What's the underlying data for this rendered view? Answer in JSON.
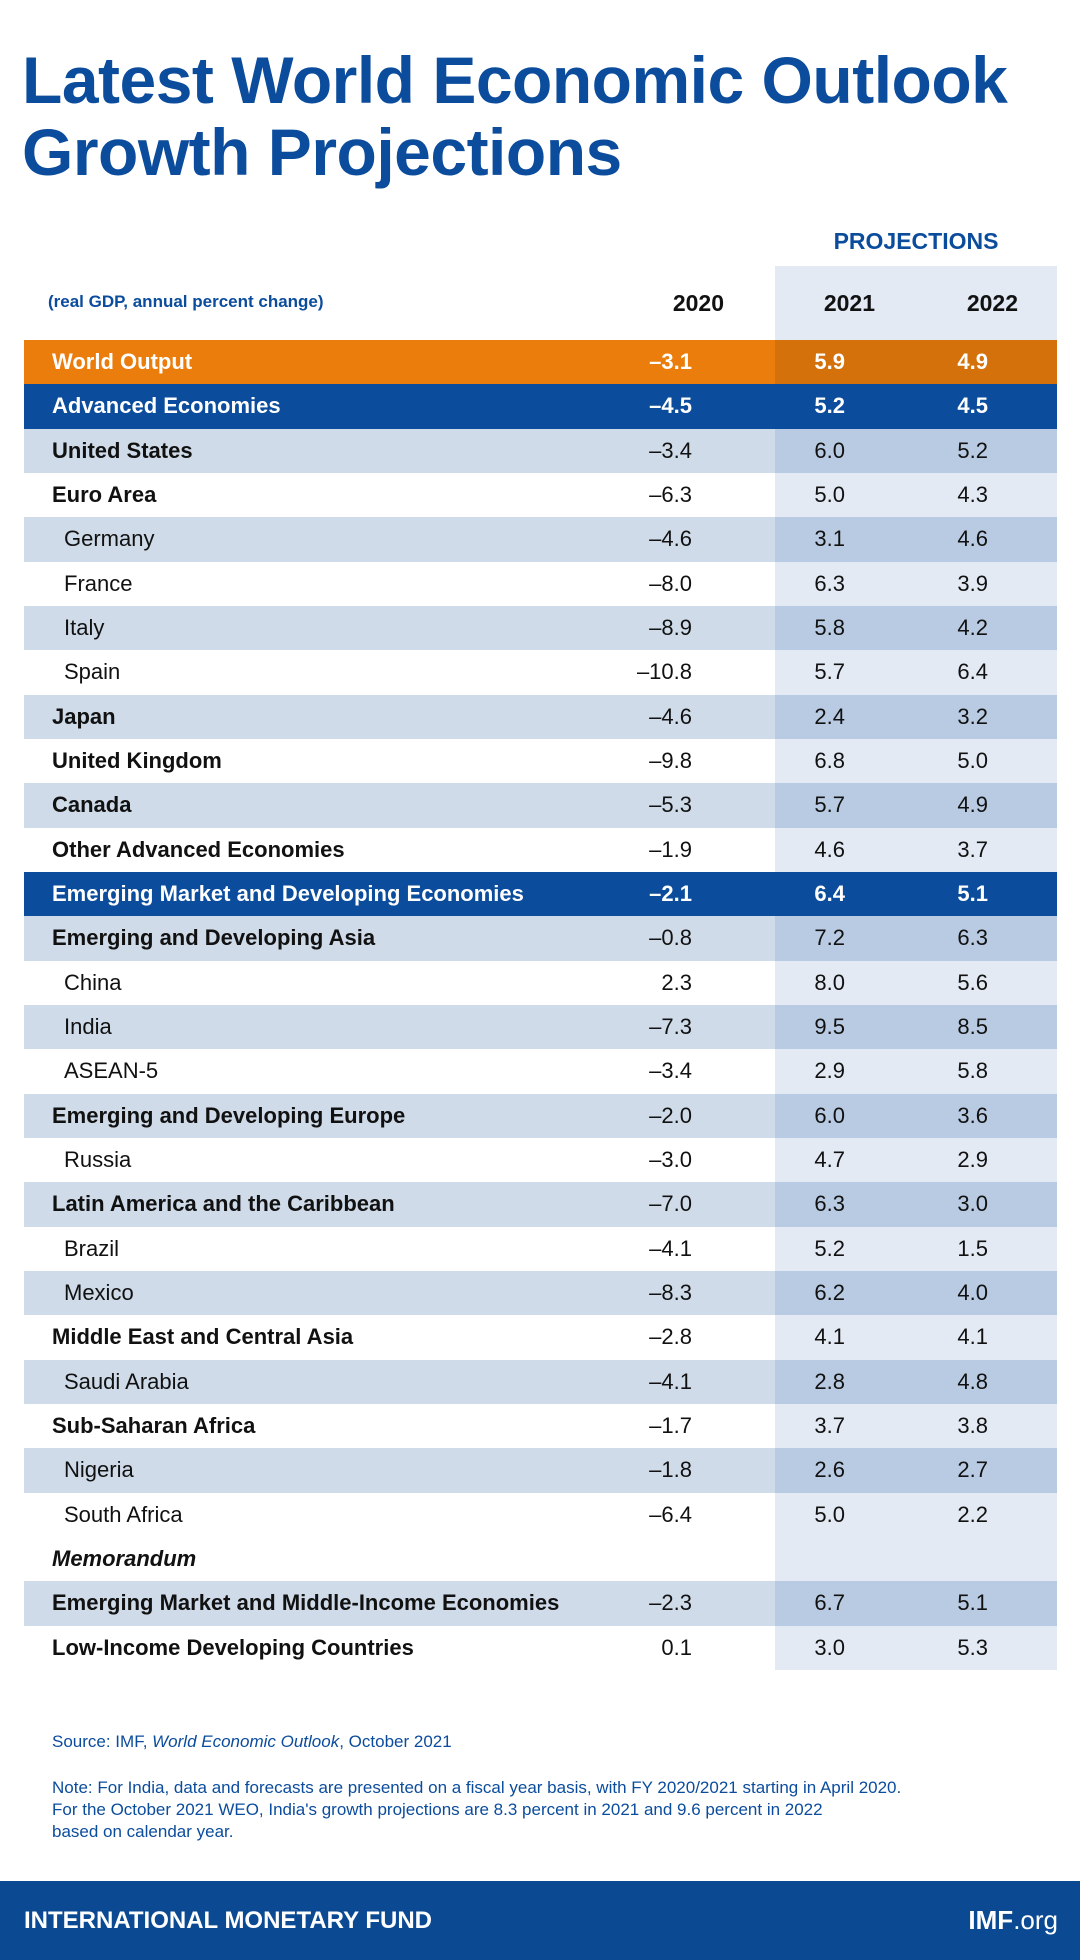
{
  "header": {
    "title": [
      "Latest World Economic Outlook",
      "Growth Projections"
    ]
  },
  "table": {
    "caption": "(real GDP, annual percent change)",
    "projections_label": "PROJECTIONS",
    "columns": [
      "2020",
      "2021",
      "2022"
    ],
    "rows": [
      {
        "label": "World Output",
        "values": [
          "–3.1",
          "5.9",
          "4.9"
        ],
        "fill": "#ea7d0c"
      },
      {
        "label": "Advanced Economies",
        "values": [
          "–4.5",
          "5.2",
          "4.5"
        ],
        "fill": "#0b4c9c"
      },
      {
        "label": "United States",
        "values": [
          "–3.4",
          "6.0",
          "5.2"
        ]
      },
      {
        "label": "Euro Area",
        "values": [
          "–6.3",
          "5.0",
          "4.3"
        ]
      },
      {
        "label": "Germany",
        "values": [
          "–4.6",
          "3.1",
          "4.6"
        ],
        "indent": true
      },
      {
        "label": "France",
        "values": [
          "–8.0",
          "6.3",
          "3.9"
        ],
        "indent": true
      },
      {
        "label": "Italy",
        "values": [
          "–8.9",
          "5.8",
          "4.2"
        ],
        "indent": true
      },
      {
        "label": "Spain",
        "values": [
          "–10.8",
          "5.7",
          "6.4"
        ],
        "indent": true
      },
      {
        "label": "Japan",
        "values": [
          "–4.6",
          "2.4",
          "3.2"
        ]
      },
      {
        "label": "United Kingdom",
        "values": [
          "–9.8",
          "6.8",
          "5.0"
        ]
      },
      {
        "label": "Canada",
        "values": [
          "–5.3",
          "5.7",
          "4.9"
        ]
      },
      {
        "label": "Other Advanced Economies",
        "values": [
          "–1.9",
          "4.6",
          "3.7"
        ]
      },
      {
        "label": "Emerging Market and Developing Economies",
        "values": [
          "–2.1",
          "6.4",
          "5.1"
        ],
        "fill": "#0b4c9c"
      },
      {
        "label": "Emerging and Developing Asia",
        "values": [
          "–0.8",
          "7.2",
          "6.3"
        ]
      },
      {
        "label": "China",
        "values": [
          "2.3",
          "8.0",
          "5.6"
        ],
        "indent": true
      },
      {
        "label": "India",
        "values": [
          "–7.3",
          "9.5",
          "8.5"
        ],
        "indent": true
      },
      {
        "label": "ASEAN-5",
        "values": [
          "–3.4",
          "2.9",
          "5.8"
        ],
        "indent": true
      },
      {
        "label": "Emerging and Developing Europe",
        "values": [
          "–2.0",
          "6.0",
          "3.6"
        ]
      },
      {
        "label": "Russia",
        "values": [
          "–3.0",
          "4.7",
          "2.9"
        ],
        "indent": true
      },
      {
        "label": "Latin America and the Caribbean",
        "values": [
          "–7.0",
          "6.3",
          "3.0"
        ]
      },
      {
        "label": "Brazil",
        "values": [
          "–4.1",
          "5.2",
          "1.5"
        ],
        "indent": true
      },
      {
        "label": "Mexico",
        "values": [
          "–8.3",
          "6.2",
          "4.0"
        ],
        "indent": true
      },
      {
        "label": "Middle East and Central Asia",
        "values": [
          "–2.8",
          "4.1",
          "4.1"
        ]
      },
      {
        "label": "Saudi Arabia",
        "values": [
          "–4.1",
          "2.8",
          "4.8"
        ],
        "indent": true
      },
      {
        "label": "Sub-Saharan Africa",
        "values": [
          "–1.7",
          "3.7",
          "3.8"
        ]
      },
      {
        "label": "Nigeria",
        "values": [
          "–1.8",
          "2.6",
          "2.7"
        ],
        "indent": true
      },
      {
        "label": "South Africa",
        "values": [
          "–6.4",
          "5.0",
          "2.2"
        ],
        "indent": true
      },
      {
        "label": "Memorandum"
      },
      {
        "label": "Emerging Market and Middle-Income Economies",
        "values": [
          "–2.3",
          "6.7",
          "5.1"
        ]
      },
      {
        "label": "Low-Income Developing Countries",
        "values": [
          "0.1",
          "3.0",
          "5.3"
        ]
      }
    ]
  },
  "source": [
    "Source: IMF, ",
    "World Economic Outlook",
    ", October 2021"
  ],
  "note": [
    "Note: For India, data and forecasts are presented on a fiscal year basis, with FY 2020/2021 starting in April 2020.",
    "For the October 2021 WEO, India's growth projections are 8.3 percent in 2021 and 9.6 percent in 2022",
    "based on calendar year."
  ],
  "footer": {
    "organization": "INTERNATIONAL MONETARY FUND",
    "site": [
      "IMF",
      ".org"
    ]
  }
}
